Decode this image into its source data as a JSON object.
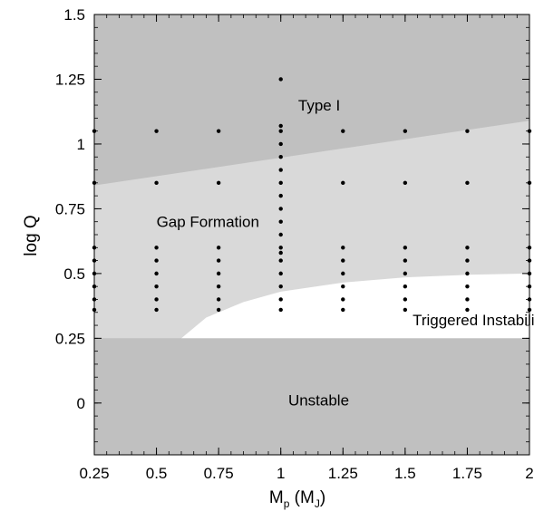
{
  "chart_data": {
    "type": "scatter",
    "xlabel": {
      "main": "M",
      "sub": "p",
      "mid": " (M",
      "sub2": "J",
      "end": ")"
    },
    "ylabel": "log Q",
    "xlim": [
      0.25,
      2.0
    ],
    "ylim": [
      -0.2,
      1.5
    ],
    "x_ticks": [
      {
        "v": 0.25,
        "label": "0.25"
      },
      {
        "v": 0.5,
        "label": "0.5"
      },
      {
        "v": 0.75,
        "label": "0.75"
      },
      {
        "v": 1.0,
        "label": "1"
      },
      {
        "v": 1.25,
        "label": "1.25"
      },
      {
        "v": 1.5,
        "label": "1.5"
      },
      {
        "v": 1.75,
        "label": "1.75"
      },
      {
        "v": 2.0,
        "label": "2"
      }
    ],
    "y_ticks": [
      {
        "v": 0.0,
        "label": "0"
      },
      {
        "v": 0.25,
        "label": "0.25"
      },
      {
        "v": 0.5,
        "label": "0.5"
      },
      {
        "v": 0.75,
        "label": "0.75"
      },
      {
        "v": 1.0,
        "label": "1"
      },
      {
        "v": 1.25,
        "label": "1.25"
      },
      {
        "v": 1.5,
        "label": "1.5"
      }
    ],
    "regions": [
      {
        "name": "Type I",
        "color": "#c0c0c0",
        "boundary_lower": [
          [
            0.25,
            0.84
          ],
          [
            2.0,
            1.09
          ]
        ],
        "label_at": [
          1.07,
          1.13
        ]
      },
      {
        "name": "Gap Formation",
        "color": "#d9d9d9",
        "label_at": [
          0.5,
          0.68
        ]
      },
      {
        "name": "Triggered Instability",
        "color": "#ffffff",
        "boundary_upper": [
          [
            0.6,
            0.25
          ],
          [
            0.7,
            0.33
          ],
          [
            0.85,
            0.39
          ],
          [
            1.0,
            0.43
          ],
          [
            1.25,
            0.465
          ],
          [
            1.5,
            0.485
          ],
          [
            1.75,
            0.495
          ],
          [
            2.0,
            0.5
          ]
        ],
        "label_at": [
          1.53,
          0.3
        ]
      },
      {
        "name": "Unstable",
        "color": "#c0c0c0",
        "y_range": [
          -0.2,
          0.25
        ],
        "label_at": [
          1.03,
          -0.01
        ]
      }
    ],
    "series": [
      {
        "points": [
          [
            0.25,
            1.05
          ],
          [
            0.25,
            0.85
          ],
          [
            0.25,
            0.6
          ],
          [
            0.25,
            0.55
          ],
          [
            0.25,
            0.5
          ],
          [
            0.25,
            0.45
          ],
          [
            0.25,
            0.4
          ],
          [
            0.25,
            0.36
          ],
          [
            0.5,
            1.05
          ],
          [
            0.5,
            0.85
          ],
          [
            0.5,
            0.6
          ],
          [
            0.5,
            0.55
          ],
          [
            0.5,
            0.5
          ],
          [
            0.5,
            0.45
          ],
          [
            0.5,
            0.4
          ],
          [
            0.5,
            0.36
          ],
          [
            0.75,
            1.05
          ],
          [
            0.75,
            0.85
          ],
          [
            0.75,
            0.6
          ],
          [
            0.75,
            0.55
          ],
          [
            0.75,
            0.5
          ],
          [
            0.75,
            0.45
          ],
          [
            0.75,
            0.4
          ],
          [
            0.75,
            0.36
          ],
          [
            1.0,
            1.25
          ],
          [
            1.0,
            1.07
          ],
          [
            1.0,
            1.05
          ],
          [
            1.0,
            1.0
          ],
          [
            1.0,
            0.95
          ],
          [
            1.0,
            0.9
          ],
          [
            1.0,
            0.85
          ],
          [
            1.0,
            0.8
          ],
          [
            1.0,
            0.75
          ],
          [
            1.0,
            0.7
          ],
          [
            1.0,
            0.65
          ],
          [
            1.0,
            0.6
          ],
          [
            1.0,
            0.58
          ],
          [
            1.0,
            0.55
          ],
          [
            1.0,
            0.5
          ],
          [
            1.0,
            0.45
          ],
          [
            1.0,
            0.4
          ],
          [
            1.0,
            0.36
          ],
          [
            1.25,
            1.05
          ],
          [
            1.25,
            0.85
          ],
          [
            1.25,
            0.6
          ],
          [
            1.25,
            0.55
          ],
          [
            1.25,
            0.5
          ],
          [
            1.25,
            0.45
          ],
          [
            1.25,
            0.4
          ],
          [
            1.25,
            0.36
          ],
          [
            1.5,
            1.05
          ],
          [
            1.5,
            0.85
          ],
          [
            1.5,
            0.6
          ],
          [
            1.5,
            0.55
          ],
          [
            1.5,
            0.5
          ],
          [
            1.5,
            0.45
          ],
          [
            1.5,
            0.4
          ],
          [
            1.5,
            0.36
          ],
          [
            1.75,
            1.05
          ],
          [
            1.75,
            0.85
          ],
          [
            1.75,
            0.6
          ],
          [
            1.75,
            0.55
          ],
          [
            1.75,
            0.5
          ],
          [
            1.75,
            0.45
          ],
          [
            1.75,
            0.4
          ],
          [
            1.75,
            0.36
          ],
          [
            2.0,
            1.05
          ],
          [
            2.0,
            0.85
          ],
          [
            2.0,
            0.6
          ],
          [
            2.0,
            0.55
          ],
          [
            2.0,
            0.5
          ],
          [
            2.0,
            0.45
          ],
          [
            2.0,
            0.4
          ],
          [
            2.0,
            0.36
          ]
        ]
      }
    ],
    "grid": false
  }
}
